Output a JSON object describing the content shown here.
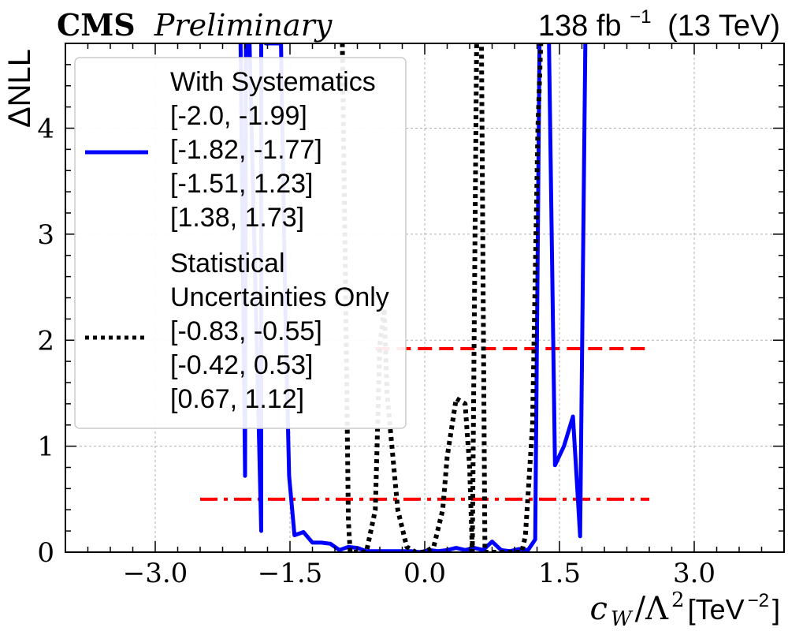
{
  "header": {
    "experiment": "CMS",
    "status": "Preliminary",
    "lumi_value": "138 fb",
    "lumi_exponent": "−1",
    "energy": "(13 TeV)"
  },
  "legend": {
    "entries": [
      {
        "series": 0,
        "lines": [
          "With Systematics",
          "[-2.0, -1.99]",
          "[-1.82, -1.77]",
          "[-1.51, 1.23]",
          "[1.38, 1.73]"
        ]
      },
      {
        "series": 1,
        "lines": [
          "Statistical",
          "Uncertainties Only",
          "[-0.83, -0.55]",
          "[-0.42, 0.53]",
          "[0.67, 1.12]"
        ]
      }
    ]
  },
  "chart_data": {
    "type": "line",
    "title": "",
    "xlabel": {
      "var": "c",
      "sub": "W",
      "mid": "/Λ",
      "sup": "2",
      "unit": " [TeV",
      "unit_sup": "−2",
      "unit_end": "]"
    },
    "ylabel": "ΔNLL",
    "xlim": [
      -4.0,
      4.0
    ],
    "ylim": [
      0,
      4.8
    ],
    "xticks": [
      -3.0,
      -1.5,
      0.0,
      1.5,
      3.0
    ],
    "xtick_labels": [
      "−3.0",
      "−1.5",
      "0.0",
      "1.5",
      "3.0"
    ],
    "yticks": [
      0,
      1,
      2,
      3,
      4
    ],
    "ytick_labels": [
      "0",
      "1",
      "2",
      "3",
      "4"
    ],
    "grid": true,
    "legend_position": "upper-left",
    "series": [
      {
        "style": "solid",
        "color": "#0000ff",
        "x": [
          -2.05,
          -2.05,
          -2.0,
          -1.99,
          -1.95,
          -1.95,
          -1.82,
          -1.82,
          -1.77,
          -1.77,
          -1.6,
          -1.55,
          -1.51,
          -1.45,
          -1.35,
          -1.25,
          -1.15,
          -1.05,
          -0.95,
          -0.85,
          -0.75,
          -0.65,
          -0.55,
          -0.45,
          -0.35,
          -0.25,
          -0.15,
          -0.05,
          0.05,
          0.15,
          0.25,
          0.35,
          0.45,
          0.55,
          0.65,
          0.75,
          0.85,
          0.95,
          1.05,
          1.15,
          1.23,
          1.28,
          1.33,
          1.38,
          1.45,
          1.55,
          1.65,
          1.73,
          1.79,
          1.85
        ],
        "y": [
          5.0,
          4.8,
          0.72,
          5.0,
          5.0,
          4.8,
          0.2,
          5.0,
          5.0,
          4.8,
          4.8,
          2.2,
          0.72,
          0.16,
          0.19,
          0.09,
          0.09,
          0.08,
          0.02,
          0.05,
          0.04,
          0.01,
          0.01,
          0.01,
          0.01,
          0.01,
          0.01,
          0.0,
          0.02,
          0.01,
          0.02,
          0.04,
          0.02,
          0.04,
          0.02,
          0.1,
          0.02,
          0.01,
          0.03,
          0.02,
          0.12,
          5.0,
          5.0,
          5.0,
          0.82,
          1.0,
          1.28,
          0.15,
          5.0,
          5.0
        ]
      },
      {
        "style": "dotted",
        "color": "#000000",
        "x": [
          -0.95,
          -0.92,
          -0.88,
          -0.85,
          -0.83,
          -0.77,
          -0.72,
          -0.65,
          -0.55,
          -0.5,
          -0.45,
          -0.42,
          -0.3,
          -0.2,
          -0.1,
          0.0,
          0.1,
          0.2,
          0.25,
          0.35,
          0.45,
          0.5,
          0.53,
          0.58,
          0.63,
          0.67,
          0.8,
          0.9,
          1.0,
          1.08,
          1.12,
          1.2,
          1.26,
          1.3
        ],
        "y": [
          5.0,
          5.0,
          2.4,
          0.3,
          0.0,
          0.0,
          0.0,
          0.0,
          0.4,
          1.95,
          2.3,
          1.5,
          0.4,
          0.05,
          0.0,
          0.0,
          0.05,
          0.4,
          0.9,
          1.45,
          1.4,
          0.8,
          0.0,
          5.0,
          5.0,
          0.0,
          0.0,
          0.0,
          0.0,
          0.0,
          0.15,
          1.2,
          4.0,
          5.0
        ]
      }
    ],
    "reference_lines": [
      {
        "y": 1.92,
        "x_range": [
          -0.55,
          2.5
        ],
        "style": "dashed",
        "color": "#ff0000"
      },
      {
        "y": 0.5,
        "x_range": [
          -2.5,
          2.5
        ],
        "style": "dashdot",
        "color": "#ff0000"
      }
    ]
  }
}
